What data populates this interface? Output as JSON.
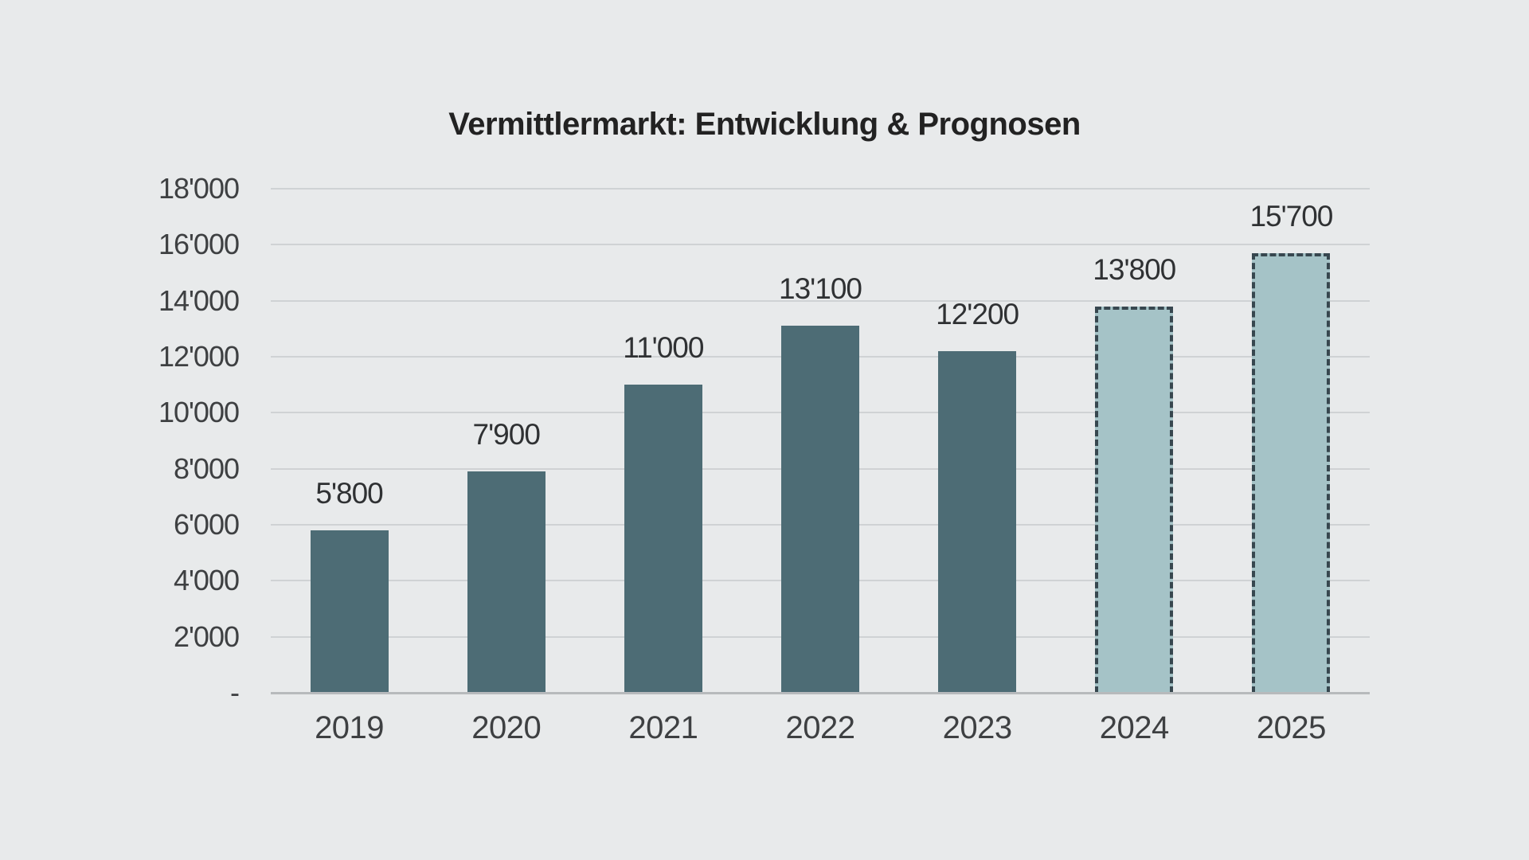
{
  "chart_data": {
    "type": "bar",
    "title": "Vermittlermarkt: Entwicklung & Prognosen",
    "categories": [
      "2019",
      "2020",
      "2021",
      "2022",
      "2023",
      "2024",
      "2025"
    ],
    "values": [
      5800,
      7900,
      11000,
      13100,
      12200,
      13800,
      15700
    ],
    "value_labels": [
      "5'800",
      "7'900",
      "11'000",
      "13'100",
      "12'200",
      "13'800",
      "15'700"
    ],
    "is_forecast": [
      false,
      false,
      false,
      false,
      false,
      true,
      true
    ],
    "xlabel": "",
    "ylabel": "",
    "ylim": [
      0,
      18000
    ],
    "ytick_interval": 2000,
    "ytick_labels": [
      "18'000",
      "16'000",
      "14'000",
      "12'000",
      "10'000",
      "8'000",
      "6'000",
      "4'000",
      "2'000",
      "-"
    ],
    "grid": true,
    "legend": "none",
    "colors": {
      "bar": "#4d6c75",
      "forecast_fill": "#a5c3c7",
      "forecast_border": "#37474f",
      "gridline": "#cfd2d4",
      "baseline": "#b7babc",
      "label_text": "#2f3133",
      "tick_text": "#3e4042",
      "title_text": "#222222",
      "background": "#e8eaeb"
    }
  }
}
